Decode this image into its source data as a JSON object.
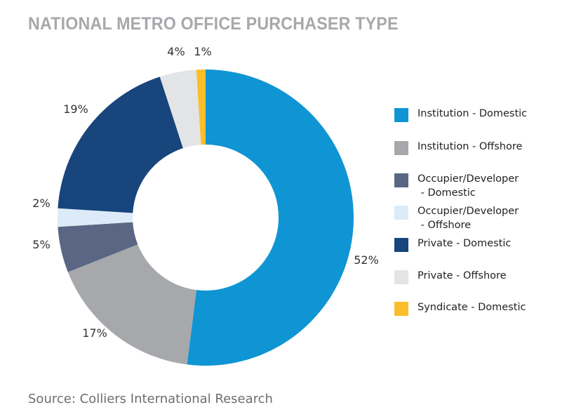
{
  "chart_data": {
    "type": "pie",
    "title": "NATIONAL METRO OFFICE PURCHASER TYPE",
    "donut": true,
    "legend_position": "right",
    "slices": [
      {
        "label": "Institution - Domestic",
        "value": 52,
        "value_label": "52%",
        "color": "#0f95d3"
      },
      {
        "label": "Institution - Offshore",
        "value": 17,
        "value_label": "17%",
        "color": "#a6a8ab"
      },
      {
        "label": "Occupier/Developer\n - Domestic",
        "value": 5,
        "value_label": "5%",
        "color": "#5a6684"
      },
      {
        "label": "Occupier/Developer\n - Offshore",
        "value": 2,
        "value_label": "2%",
        "color": "#dcebf7"
      },
      {
        "label": "Private - Domestic",
        "value": 19,
        "value_label": "19%",
        "color": "#17457c"
      },
      {
        "label": "Private - Offshore",
        "value": 4,
        "value_label": "4%",
        "color": "#e3e4e6"
      },
      {
        "label": "Syndicate - Domestic",
        "value": 1,
        "value_label": "1%",
        "color": "#fbbd29"
      }
    ]
  },
  "source": "Source: Colliers International Research"
}
